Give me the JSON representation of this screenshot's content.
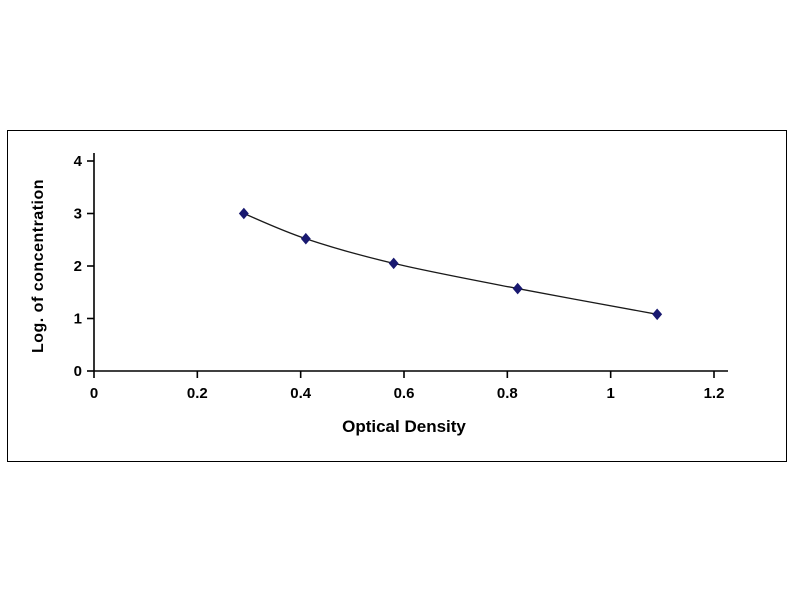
{
  "chart_data": {
    "type": "line",
    "title": "",
    "xlabel": "Optical Density",
    "ylabel": "Log. of concentration",
    "x": [
      0.29,
      0.41,
      0.58,
      0.82,
      1.09
    ],
    "y": [
      3.0,
      2.52,
      2.05,
      1.57,
      1.08
    ],
    "xlim": [
      0,
      1.2
    ],
    "ylim": [
      0,
      4
    ],
    "xticks": [
      0,
      0.2,
      0.4,
      0.6,
      0.8,
      1,
      1.2
    ],
    "yticks": [
      0,
      1,
      2,
      3,
      4
    ],
    "xtick_labels": [
      "0",
      "0.2",
      "0.4",
      "0.6",
      "0.8",
      "1",
      "1.2"
    ],
    "ytick_labels": [
      "0",
      "1",
      "2",
      "3",
      "4"
    ],
    "grid": false,
    "legend": "none",
    "marker": "diamond",
    "marker_color": "#191970",
    "line_color": "#1a1a1a"
  },
  "colors": {
    "background": "#ffffff",
    "frame_border": "#000000",
    "text": "#000000"
  }
}
